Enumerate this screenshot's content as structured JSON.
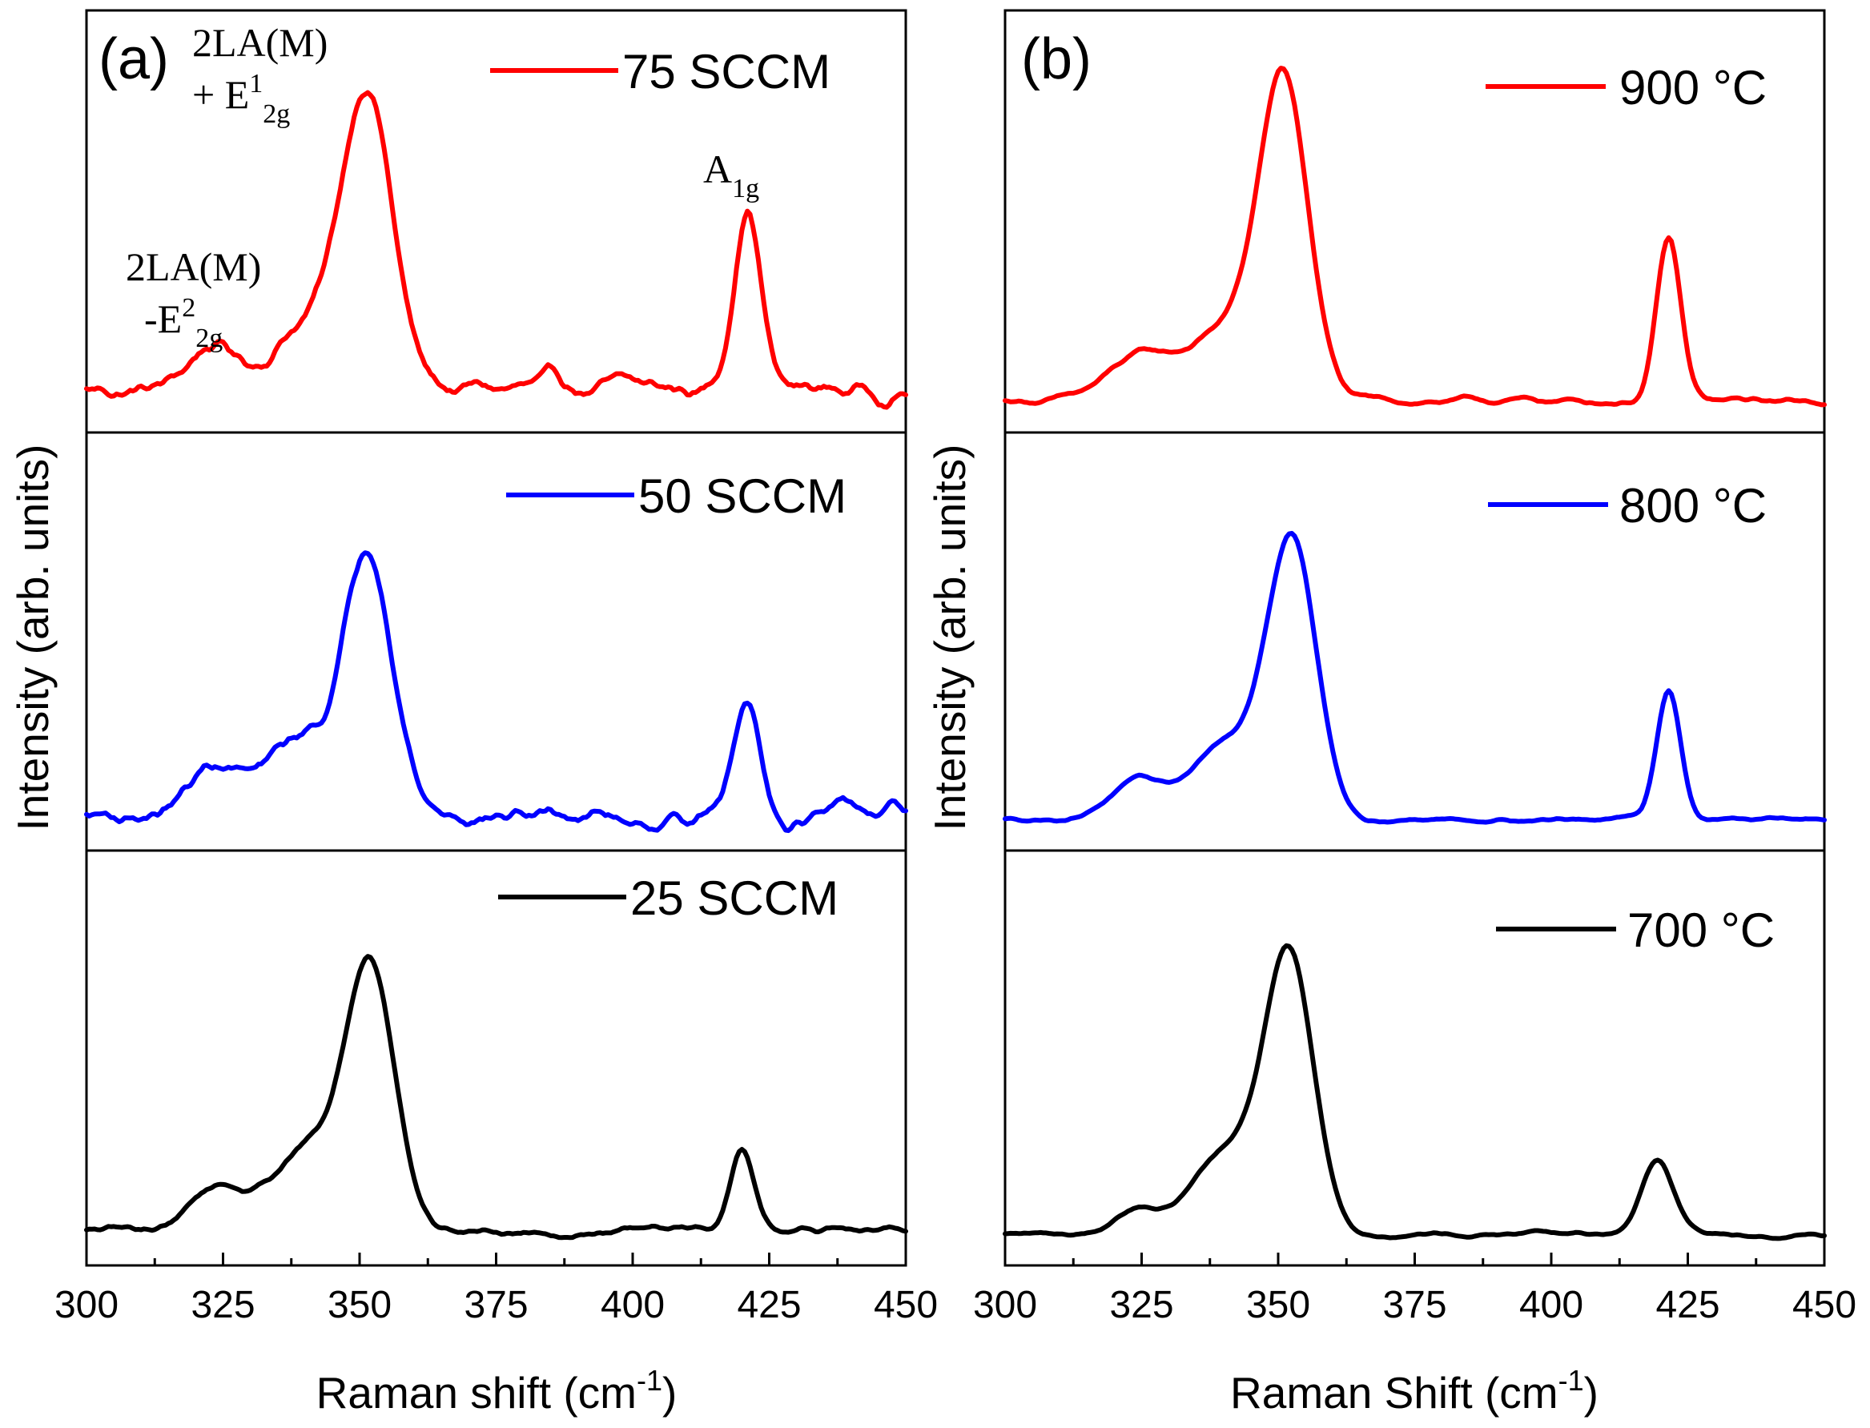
{
  "chart_data": [
    {
      "type": "line",
      "panel_label": "(a)",
      "xlabel": "Raman shift (cm",
      "xlabel_sup": "-1",
      "xlabel_end": ")",
      "ylabel": "Intensity (arb. units)",
      "xlim": [
        300,
        450
      ],
      "xticks": [
        300,
        325,
        350,
        375,
        400,
        425,
        450
      ],
      "xtick_labels": [
        "300",
        "325",
        "350",
        "375",
        "400",
        "425",
        "450"
      ],
      "stacked": true,
      "series": [
        {
          "name": "75 SCCM",
          "color": "#ff0000",
          "baseline": 0.05,
          "noise": 0.02,
          "peaks": [
            [
              323,
              4,
              0.12
            ],
            [
              340,
              6,
              0.18
            ],
            [
              351.5,
              4.5,
              0.8
            ],
            [
              421,
              2.5,
              0.5
            ]
          ]
        },
        {
          "name": "50 SCCM",
          "color": "#0000ff",
          "baseline": 0.03,
          "noise": 0.02,
          "peaks": [
            [
              324,
              5,
              0.13
            ],
            [
              340,
              6,
              0.2
            ],
            [
              352,
              4.5,
              0.7
            ],
            [
              421,
              2.5,
              0.3
            ]
          ]
        },
        {
          "name": "25 SCCM",
          "color": "#000000",
          "baseline": 0.03,
          "noise": 0.008,
          "peaks": [
            [
              324,
              5,
              0.12
            ],
            [
              340,
              6,
              0.22
            ],
            [
              352,
              4.5,
              0.72
            ],
            [
              420,
              2.2,
              0.22
            ]
          ]
        }
      ],
      "annotations": [
        {
          "line1": "2LA(M)",
          "prefix": "+ E",
          "sup": "1",
          "sub": "2g"
        },
        {
          "line1": "2LA(M)",
          "prefix": "-E",
          "sup": "2",
          "sub": "2g"
        },
        {
          "prefix": "A",
          "sub": "1g"
        }
      ]
    },
    {
      "type": "line",
      "panel_label": "(b)",
      "xlabel": "Raman Shift (cm",
      "xlabel_sup": "-1",
      "xlabel_end": ")",
      "ylabel": "Intensity (arb. units)",
      "xlim": [
        300,
        450
      ],
      "xticks": [
        300,
        325,
        350,
        375,
        400,
        425,
        450
      ],
      "xtick_labels": [
        "300",
        "325",
        "350",
        "375",
        "400",
        "425",
        "450"
      ],
      "stacked": true,
      "series": [
        {
          "name": "900 °C",
          "color": "#ff0000",
          "baseline": 0.02,
          "noise": 0.006,
          "peaks": [
            [
              325,
              6,
              0.12
            ],
            [
              340,
              6,
              0.18
            ],
            [
              351,
              4.5,
              0.85
            ],
            [
              421.5,
              2.2,
              0.43
            ]
          ]
        },
        {
          "name": "800 °C",
          "color": "#0000ff",
          "baseline": 0.02,
          "noise": 0.004,
          "peaks": [
            [
              324,
              5,
              0.1
            ],
            [
              340,
              6,
              0.2
            ],
            [
              352.5,
              4.5,
              0.75
            ],
            [
              421.5,
              2.2,
              0.35
            ]
          ]
        },
        {
          "name": "700 °C",
          "color": "#000000",
          "baseline": 0.02,
          "noise": 0.004,
          "peaks": [
            [
              324,
              4,
              0.07
            ],
            [
              340,
              6,
              0.22
            ],
            [
              352,
              4.5,
              0.76
            ],
            [
              419.5,
              3,
              0.2
            ]
          ]
        }
      ]
    }
  ]
}
